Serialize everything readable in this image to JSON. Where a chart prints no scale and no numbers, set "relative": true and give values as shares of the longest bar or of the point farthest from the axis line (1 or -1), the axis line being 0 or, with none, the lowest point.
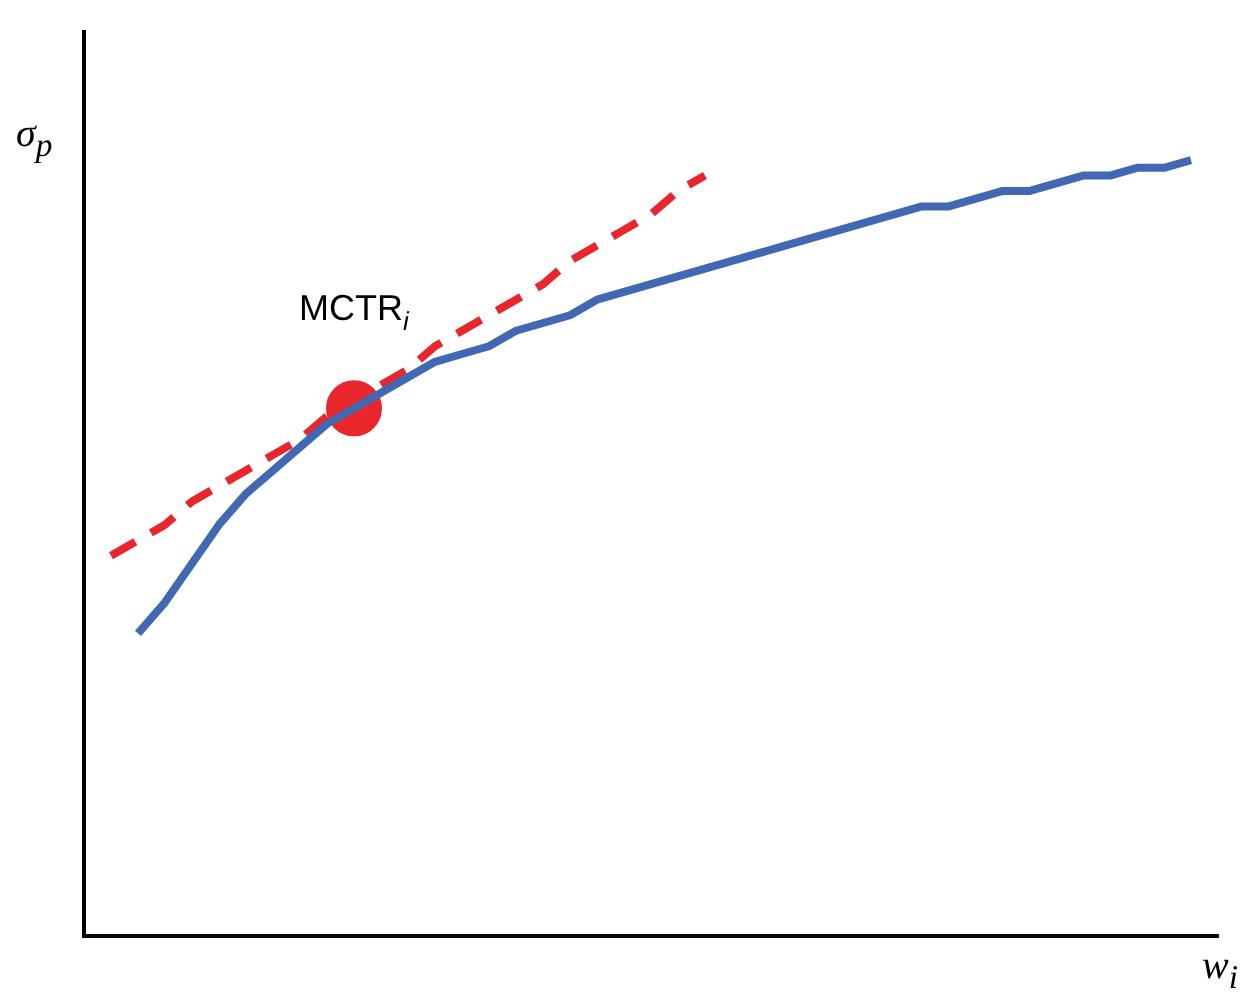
{
  "chart_data": {
    "type": "line",
    "relative": true,
    "xlabel": "w$_{i}$",
    "ylabel": "σ$_{p}$",
    "grid": false,
    "legend": false,
    "annotations": [
      "MCTR$_{i}$"
    ],
    "categories": [
      null,
      null,
      null,
      null,
      null,
      null,
      null,
      null,
      null,
      null,
      null,
      null,
      null,
      null,
      null,
      null,
      null,
      null,
      null,
      null,
      null,
      null,
      null,
      null,
      null,
      null,
      null,
      null,
      null,
      null,
      null,
      null,
      null,
      null,
      null,
      null,
      null,
      null,
      null,
      null,
      null,
      null,
      null
    ],
    "series": [
      {
        "color": "#4169b3",
        "line_style": "solid",
        "marker": "none",
        "values": [
          null,
          null,
          0.39,
          0.43,
          0.48,
          0.53,
          0.57,
          0.6,
          0.63,
          0.66,
          0.68,
          0.7,
          0.72,
          0.74,
          0.75,
          0.76,
          0.78,
          0.79,
          0.8,
          0.82,
          0.83,
          0.84,
          0.85,
          0.86,
          0.87,
          0.88,
          0.89,
          0.9,
          0.91,
          0.92,
          0.93,
          0.94,
          0.94,
          0.95,
          0.96,
          0.96,
          0.97,
          0.98,
          0.98,
          0.99,
          0.99,
          1,
          null
        ]
      },
      {
        "color": "#e8262b",
        "line_style": "dashed",
        "marker": "none",
        "values": [
          null,
          0.49,
          0.51,
          0.53,
          0.56,
          0.58,
          0.6,
          0.62,
          0.64,
          0.67,
          0.68,
          0.71,
          0.73,
          0.76,
          0.78,
          0.8,
          0.82,
          0.84,
          0.87,
          0.89,
          0.91,
          0.93,
          0.96,
          0.98,
          null,
          null,
          null,
          null,
          null,
          null,
          null,
          null,
          null,
          null,
          null,
          null,
          null,
          null,
          null,
          null,
          null,
          null,
          null
        ]
      },
      {
        "color": "#e8262b",
        "marker": "circle",
        "values": [
          null,
          null,
          null,
          null,
          null,
          null,
          null,
          null,
          null,
          null,
          0.68,
          null,
          null,
          null,
          null,
          null,
          null,
          null,
          null,
          null,
          null,
          null,
          null,
          null,
          null,
          null,
          null,
          null,
          null,
          null,
          null,
          null,
          null,
          null,
          null,
          null,
          null,
          null,
          null,
          null,
          null,
          null,
          null
        ]
      }
    ]
  }
}
